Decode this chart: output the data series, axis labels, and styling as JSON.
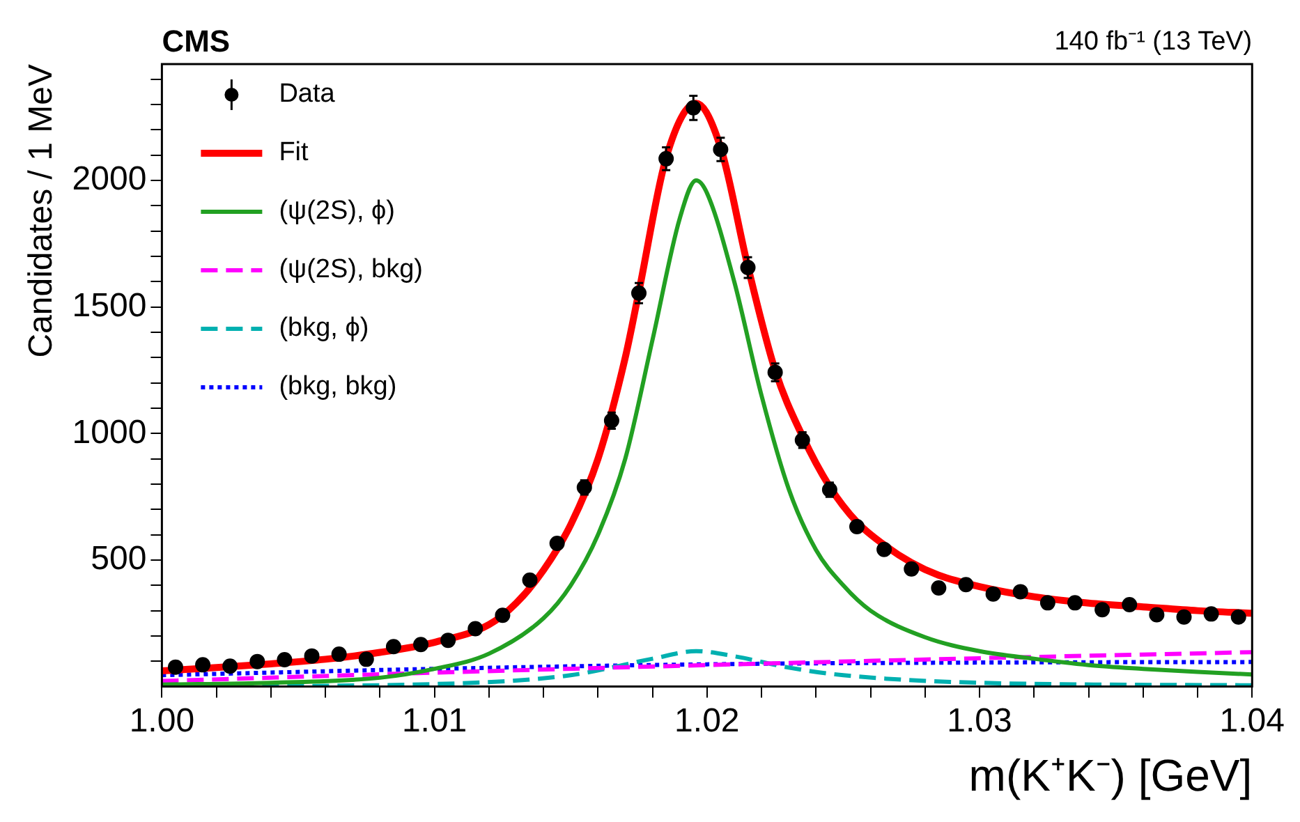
{
  "chart_data": {
    "type": "line",
    "title": "CMS",
    "annotations": [
      "140 fb⁻¹ (13 TeV)"
    ],
    "xlabel": "m(K⁺K⁻) [GeV]",
    "ylabel": "Candidates / 1 MeV",
    "xlim": [
      1.0,
      1.04
    ],
    "xticks": [
      {
        "value": 1.0,
        "label": "1.00"
      },
      {
        "value": 1.002,
        "label": null
      },
      {
        "value": 1.004,
        "label": null
      },
      {
        "value": 1.006,
        "label": null
      },
      {
        "value": 1.008,
        "label": null
      },
      {
        "value": 1.01,
        "label": "1.01"
      },
      {
        "value": 1.012,
        "label": null
      },
      {
        "value": 1.014,
        "label": null
      },
      {
        "value": 1.016,
        "label": null
      },
      {
        "value": 1.018,
        "label": null
      },
      {
        "value": 1.02,
        "label": "1.02"
      },
      {
        "value": 1.022,
        "label": null
      },
      {
        "value": 1.024,
        "label": null
      },
      {
        "value": 1.026,
        "label": null
      },
      {
        "value": 1.028,
        "label": null
      },
      {
        "value": 1.03,
        "label": "1.03"
      },
      {
        "value": 1.032,
        "label": null
      },
      {
        "value": 1.034,
        "label": null
      },
      {
        "value": 1.036,
        "label": null
      },
      {
        "value": 1.038,
        "label": null
      },
      {
        "value": 1.04,
        "label": "1.04"
      }
    ],
    "ylim": [
      0,
      2460
    ],
    "yticks": [
      {
        "value": 100,
        "label": null
      },
      {
        "value": 200,
        "label": null
      },
      {
        "value": 300,
        "label": null
      },
      {
        "value": 400,
        "label": null
      },
      500,
      {
        "value": 600,
        "label": null
      },
      {
        "value": 700,
        "label": null
      },
      {
        "value": 800,
        "label": null
      },
      {
        "value": 900,
        "label": null
      },
      1000,
      {
        "value": 1100,
        "label": null
      },
      {
        "value": 1200,
        "label": null
      },
      {
        "value": 1300,
        "label": null
      },
      {
        "value": 1400,
        "label": null
      },
      1500,
      {
        "value": 1600,
        "label": null
      },
      {
        "value": 1700,
        "label": null
      },
      {
        "value": 1800,
        "label": null
      },
      {
        "value": 1900,
        "label": null
      },
      2000,
      {
        "value": 2100,
        "label": null
      },
      {
        "value": 2200,
        "label": null
      },
      {
        "value": 2300,
        "label": null
      },
      {
        "value": 2400,
        "label": null
      }
    ],
    "grid": false,
    "legend": "top left",
    "series": [
      {
        "name": "Data",
        "type": "scatter",
        "marker": "circle",
        "color": "#000000",
        "x": [
          1.0005,
          1.0015,
          1.0025,
          1.0035,
          1.0045,
          1.0055,
          1.0065,
          1.0075,
          1.0085,
          1.0095,
          1.0105,
          1.0115,
          1.0125,
          1.0135,
          1.0145,
          1.0155,
          1.0165,
          1.0175,
          1.0185,
          1.0195,
          1.0205,
          1.0215,
          1.0225,
          1.0235,
          1.0245,
          1.0255,
          1.0265,
          1.0275,
          1.0285,
          1.0295,
          1.0305,
          1.0315,
          1.0325,
          1.0335,
          1.0345,
          1.0355,
          1.0365,
          1.0375,
          1.0385,
          1.0395
        ],
        "values": [
          77,
          86,
          81,
          99,
          106,
          121,
          128,
          108,
          158,
          166,
          183,
          229,
          282,
          421,
          566,
          787,
          1051,
          1555,
          2086,
          2287,
          2123,
          1656,
          1242,
          974,
          778,
          632,
          542,
          465,
          390,
          403,
          366,
          375,
          331,
          331,
          304,
          324,
          284,
          275,
          287,
          275
        ],
        "errors": [
          null,
          null,
          null,
          null,
          null,
          null,
          null,
          null,
          null,
          null,
          null,
          null,
          null,
          null,
          null,
          28,
          32,
          40,
          45,
          48,
          46,
          41,
          35,
          31,
          28,
          null,
          null,
          null,
          null,
          null,
          null,
          null,
          null,
          null,
          null,
          null,
          null,
          null,
          null,
          null
        ]
      },
      {
        "name": "Fit",
        "type": "line",
        "color": "#ff0000",
        "line_style": "solid",
        "x": [
          1.0,
          1.002,
          1.004,
          1.006,
          1.008,
          1.01,
          1.012,
          1.013,
          1.014,
          1.015,
          1.016,
          1.017,
          1.0175,
          1.0185,
          1.0196,
          1.0205,
          1.0215,
          1.0225,
          1.0235,
          1.0245,
          1.0255,
          1.0265,
          1.0275,
          1.0285,
          1.03,
          1.032,
          1.034,
          1.036,
          1.038,
          1.04
        ],
        "values": [
          62,
          75,
          90,
          108,
          135,
          175,
          245,
          330,
          460,
          640,
          900,
          1300,
          1560,
          2090,
          2305,
          2130,
          1660,
          1250,
          990,
          790,
          650,
          560,
          490,
          440,
          395,
          355,
          330,
          315,
          300,
          290
        ]
      },
      {
        "name": "(ψ(2S), ϕ)",
        "type": "line",
        "color": "#22a022",
        "line_style": "solid",
        "x": [
          1.0,
          1.004,
          1.008,
          1.01,
          1.012,
          1.014,
          1.015,
          1.016,
          1.017,
          1.018,
          1.019,
          1.0196,
          1.02,
          1.021,
          1.022,
          1.023,
          1.024,
          1.025,
          1.026,
          1.028,
          1.03,
          1.032,
          1.034,
          1.036,
          1.038,
          1.04
        ],
        "values": [
          8,
          15,
          35,
          70,
          130,
          270,
          400,
          600,
          900,
          1370,
          1850,
          2000,
          1950,
          1600,
          1150,
          780,
          540,
          400,
          300,
          195,
          140,
          110,
          85,
          70,
          58,
          48
        ]
      },
      {
        "name": "(ψ(2S), bkg)",
        "type": "line",
        "color": "#ff00ff",
        "line_style": "dashed",
        "x": [
          1.0,
          1.01,
          1.02,
          1.03,
          1.04
        ],
        "values": [
          22,
          55,
          85,
          112,
          136
        ]
      },
      {
        "name": "(bkg, ϕ)",
        "type": "line",
        "color": "#00b0b0",
        "line_style": "dashed",
        "x": [
          1.0,
          1.01,
          1.015,
          1.018,
          1.0196,
          1.021,
          1.023,
          1.025,
          1.03,
          1.04
        ],
        "values": [
          0,
          10,
          45,
          110,
          140,
          120,
          75,
          45,
          15,
          5
        ]
      },
      {
        "name": "(bkg, bkg)",
        "type": "line",
        "color": "#0000ff",
        "line_style": "dotted",
        "x": [
          1.0,
          1.01,
          1.02,
          1.03,
          1.04
        ],
        "values": [
          45,
          70,
          88,
          95,
          97
        ]
      }
    ]
  }
}
